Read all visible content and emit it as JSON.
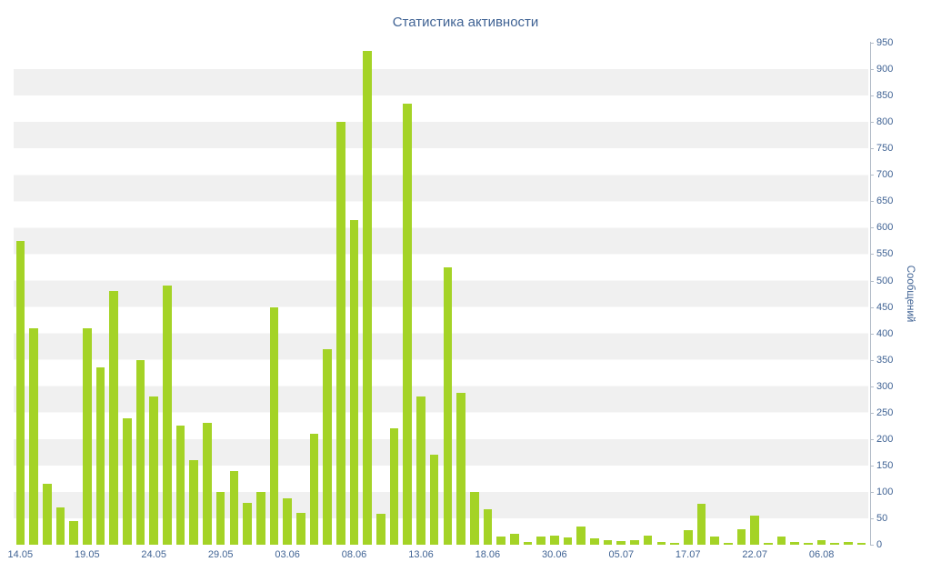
{
  "chart_data": {
    "type": "bar",
    "title": "Статистика активности",
    "xlabel": "",
    "ylabel": "Сообщений",
    "ylim": [
      0,
      950
    ],
    "y_tick_step": 50,
    "grid": "horizontal-stripes",
    "legend": "none",
    "bar_color": "#a4d326",
    "label_color": "#406394",
    "axis_color": "#b3bcc8",
    "stripe_color": "#f0f0f0",
    "values": [
      575,
      410,
      115,
      70,
      45,
      410,
      335,
      480,
      240,
      350,
      280,
      490,
      225,
      160,
      230,
      100,
      140,
      80,
      100,
      450,
      88,
      60,
      210,
      370,
      800,
      615,
      935,
      58,
      220,
      835,
      280,
      170,
      525,
      288,
      100,
      68,
      15,
      20,
      5,
      15,
      18,
      14,
      35,
      12,
      8,
      7,
      8,
      18,
      5,
      3,
      28,
      78,
      15,
      4,
      30,
      55,
      3,
      15,
      6,
      4,
      8,
      3,
      6,
      3
    ],
    "x_tick_indices": [
      0,
      5,
      10,
      15,
      20,
      25,
      30,
      35,
      40,
      45,
      50,
      55,
      60
    ],
    "x_tick_labels": [
      "14.05",
      "19.05",
      "24.05",
      "29.05",
      "03.06",
      "08.06",
      "13.06",
      "18.06",
      "30.06",
      "05.07",
      "17.07",
      "22.07",
      "06.08"
    ]
  }
}
